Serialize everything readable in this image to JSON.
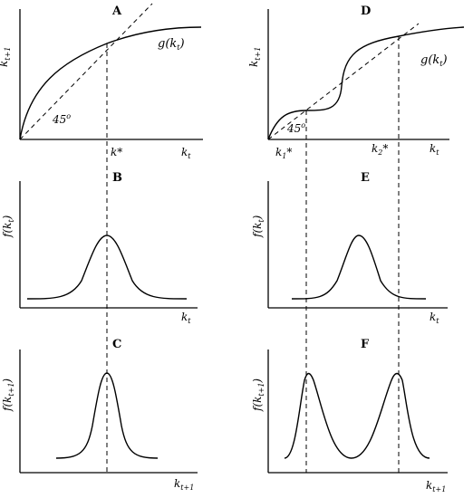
{
  "panels": {
    "A": {
      "title": "A",
      "y_label": "kt+1",
      "curve_label": "g(kt)",
      "angle_label": "45o",
      "x_label": "kt",
      "marker_label": "k*"
    },
    "B": {
      "title": "B",
      "y_label": "f(kt)",
      "x_label": "kt"
    },
    "C": {
      "title": "C",
      "y_label": "f(kt+1)",
      "x_label": "kt+1"
    },
    "D": {
      "title": "D",
      "y_label": "kt+1",
      "curve_label": "g(kt)",
      "angle_label": "45o",
      "x_label": "kt",
      "marker1_label": "k1*",
      "marker2_label": "k2*"
    },
    "E": {
      "title": "E",
      "y_label": "f(kt)",
      "x_label": "kt"
    },
    "F": {
      "title": "F",
      "y_label": "f(kt+1)",
      "x_label": "kt+1"
    }
  }
}
